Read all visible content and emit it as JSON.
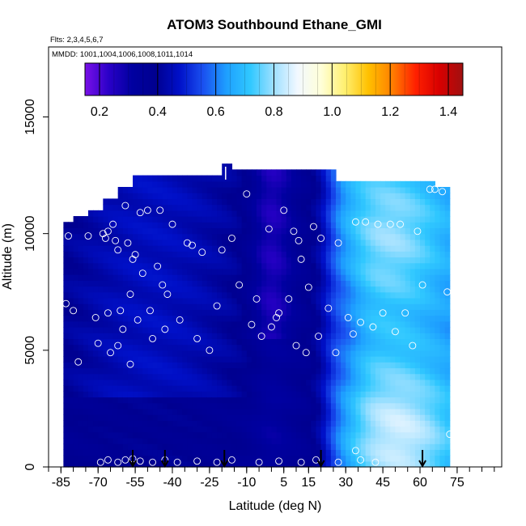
{
  "chart_data": {
    "type": "heatmap",
    "title": "ATOM3 Southbound Ethane_GMI",
    "subtitle_flights": "Flts: 2,3,4,5,6,7",
    "subtitle_dates": "MMDD: 1001,1004,1006,1008,1011,1014",
    "xlabel": "Latitude (deg N)",
    "ylabel": "Altitude (m)",
    "xlim": [
      -90,
      93
    ],
    "ylim": [
      0,
      18000
    ],
    "x_ticks": [
      -85,
      -70,
      -55,
      -40,
      -25,
      -10,
      5,
      15,
      30,
      45,
      60,
      75
    ],
    "x_tick_labels": [
      "-85",
      "-70",
      "-55",
      "-40",
      "-25",
      "-10",
      "5",
      "15",
      "30",
      "45",
      "60",
      "75"
    ],
    "y_ticks": [
      0,
      5000,
      10000,
      15000
    ],
    "y_tick_labels": [
      "0",
      "5000",
      "10000",
      "15000"
    ],
    "colorbar": {
      "range": [
        0.15,
        1.45
      ],
      "ticks": [
        0.2,
        0.4,
        0.6,
        0.8,
        1.0,
        1.2,
        1.4
      ],
      "tick_labels": [
        "0.2",
        "0.4",
        "0.6",
        "0.8",
        "1.0",
        "1.2",
        "1.4"
      ],
      "colors": [
        "#7a10e8",
        "#2a00c8",
        "#0000a0",
        "#000090",
        "#0010c8",
        "#1a50f0",
        "#1ea0ff",
        "#30c8ff",
        "#9fe0ff",
        "#f2f8ff",
        "#ffffd8",
        "#fff070",
        "#ffc000",
        "#ff8000",
        "#ff2000",
        "#d80000",
        "#a01010"
      ]
    },
    "field_value_range": [
      0.2,
      0.85
    ],
    "description_ticks_latitudes": [
      -56,
      -43,
      -19,
      20,
      61
    ],
    "sample_points": [
      {
        "lat": -83,
        "alt": 7000
      },
      {
        "lat": -82,
        "alt": 9900
      },
      {
        "lat": -80,
        "alt": 6700
      },
      {
        "lat": -78,
        "alt": 4500
      },
      {
        "lat": -74,
        "alt": 9900
      },
      {
        "lat": -71,
        "alt": 6400
      },
      {
        "lat": -70,
        "alt": 5300
      },
      {
        "lat": -68,
        "alt": 10000
      },
      {
        "lat": -67,
        "alt": 9800
      },
      {
        "lat": -66,
        "alt": 10100
      },
      {
        "lat": -66,
        "alt": 6600
      },
      {
        "lat": -65,
        "alt": 4900
      },
      {
        "lat": -64,
        "alt": 10400
      },
      {
        "lat": -63,
        "alt": 9700
      },
      {
        "lat": -62,
        "alt": 9300
      },
      {
        "lat": -62,
        "alt": 5200
      },
      {
        "lat": -61,
        "alt": 6700
      },
      {
        "lat": -60,
        "alt": 5900
      },
      {
        "lat": -59,
        "alt": 11200
      },
      {
        "lat": -58,
        "alt": 9600
      },
      {
        "lat": -57,
        "alt": 7400
      },
      {
        "lat": -57,
        "alt": 4400
      },
      {
        "lat": -56,
        "alt": 8900
      },
      {
        "lat": -55,
        "alt": 9100
      },
      {
        "lat": -54,
        "alt": 6300
      },
      {
        "lat": -53,
        "alt": 10900
      },
      {
        "lat": -52,
        "alt": 8300
      },
      {
        "lat": -50,
        "alt": 11000
      },
      {
        "lat": -49,
        "alt": 6700
      },
      {
        "lat": -48,
        "alt": 5500
      },
      {
        "lat": -46,
        "alt": 8600
      },
      {
        "lat": -45,
        "alt": 11000
      },
      {
        "lat": -44,
        "alt": 7800
      },
      {
        "lat": -43,
        "alt": 5900
      },
      {
        "lat": -42,
        "alt": 7400
      },
      {
        "lat": -40,
        "alt": 10400
      },
      {
        "lat": -37,
        "alt": 6300
      },
      {
        "lat": -34,
        "alt": 9600
      },
      {
        "lat": -32,
        "alt": 9500
      },
      {
        "lat": -30,
        "alt": 5500
      },
      {
        "lat": -28,
        "alt": 9200
      },
      {
        "lat": -25,
        "alt": 5000
      },
      {
        "lat": -22,
        "alt": 6900
      },
      {
        "lat": -20,
        "alt": 9300
      },
      {
        "lat": -16,
        "alt": 9800
      },
      {
        "lat": -13,
        "alt": 7800
      },
      {
        "lat": -10,
        "alt": 11700
      },
      {
        "lat": -8,
        "alt": 6100
      },
      {
        "lat": -6,
        "alt": 7200
      },
      {
        "lat": -4,
        "alt": 5600
      },
      {
        "lat": -1,
        "alt": 10200
      },
      {
        "lat": 0,
        "alt": 6000
      },
      {
        "lat": 2,
        "alt": 6400
      },
      {
        "lat": 3,
        "alt": 6600
      },
      {
        "lat": 5,
        "alt": 11000
      },
      {
        "lat": 7,
        "alt": 7200
      },
      {
        "lat": 9,
        "alt": 10100
      },
      {
        "lat": 10,
        "alt": 5200
      },
      {
        "lat": 11,
        "alt": 9700
      },
      {
        "lat": 12,
        "alt": 8900
      },
      {
        "lat": 14,
        "alt": 4900
      },
      {
        "lat": 15,
        "alt": 7700
      },
      {
        "lat": 17,
        "alt": 10300
      },
      {
        "lat": 19,
        "alt": 5600
      },
      {
        "lat": 20,
        "alt": 9800
      },
      {
        "lat": 23,
        "alt": 6800
      },
      {
        "lat": 26,
        "alt": 4900
      },
      {
        "lat": 27,
        "alt": 9600
      },
      {
        "lat": 31,
        "alt": 6400
      },
      {
        "lat": 33,
        "alt": 5700
      },
      {
        "lat": 34,
        "alt": 10500
      },
      {
        "lat": 36,
        "alt": 6200
      },
      {
        "lat": 38,
        "alt": 10500
      },
      {
        "lat": 41,
        "alt": 6000
      },
      {
        "lat": 43,
        "alt": 10400
      },
      {
        "lat": 45,
        "alt": 6600
      },
      {
        "lat": 48,
        "alt": 10400
      },
      {
        "lat": 50,
        "alt": 5800
      },
      {
        "lat": 52,
        "alt": 10400
      },
      {
        "lat": 54,
        "alt": 6600
      },
      {
        "lat": 57,
        "alt": 5200
      },
      {
        "lat": 59,
        "alt": 10100
      },
      {
        "lat": 61,
        "alt": 7800
      },
      {
        "lat": 64,
        "alt": 11900
      },
      {
        "lat": 66,
        "alt": 11900
      },
      {
        "lat": 69,
        "alt": 11800
      },
      {
        "lat": 71,
        "alt": 7500
      },
      {
        "lat": 72,
        "alt": 1400
      },
      {
        "lat": -69,
        "alt": 200
      },
      {
        "lat": -66,
        "alt": 300
      },
      {
        "lat": -62,
        "alt": 200
      },
      {
        "lat": -59,
        "alt": 300
      },
      {
        "lat": -56,
        "alt": 350
      },
      {
        "lat": -53,
        "alt": 250
      },
      {
        "lat": -48,
        "alt": 200
      },
      {
        "lat": -43,
        "alt": 300
      },
      {
        "lat": -38,
        "alt": 200
      },
      {
        "lat": -30,
        "alt": 250
      },
      {
        "lat": -22,
        "alt": 200
      },
      {
        "lat": -16,
        "alt": 300
      },
      {
        "lat": -5,
        "alt": 200
      },
      {
        "lat": 3,
        "alt": 250
      },
      {
        "lat": 12,
        "alt": 200
      },
      {
        "lat": 18,
        "alt": 300
      },
      {
        "lat": 27,
        "alt": 200
      },
      {
        "lat": 34,
        "alt": 700
      },
      {
        "lat": 36,
        "alt": 300
      },
      {
        "lat": 42,
        "alt": 200
      }
    ]
  }
}
